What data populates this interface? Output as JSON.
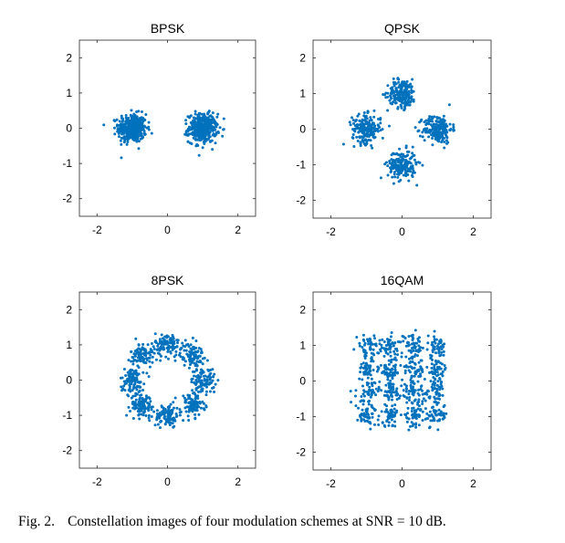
{
  "caption": {
    "label": "Fig. 2.",
    "text": "Constellation images of four modulation schemes at SNR = 10 dB."
  },
  "colors": {
    "points": "#0072BD",
    "axes": "#262626"
  },
  "chart_data": [
    {
      "type": "scatter",
      "title": "BPSK",
      "xlim": [
        -2.5,
        2.5
      ],
      "ylim": [
        -2.5,
        2.5
      ],
      "xticks": [
        -2,
        0,
        2
      ],
      "yticks": [
        -2,
        -1,
        0,
        1,
        2
      ],
      "grid": false,
      "legend": "none",
      "constellation": [
        [
          -1,
          0
        ],
        [
          1,
          0
        ]
      ],
      "noise_std": 0.2,
      "points_per_symbol": 400
    },
    {
      "type": "scatter",
      "title": "QPSK",
      "xlim": [
        -2.5,
        2.5
      ],
      "ylim": [
        -2.5,
        2.5
      ],
      "xticks": [
        -2,
        0,
        2
      ],
      "yticks": [
        -2,
        -1,
        0,
        1,
        2
      ],
      "grid": false,
      "legend": "none",
      "constellation": [
        [
          1,
          0
        ],
        [
          0,
          1
        ],
        [
          -1,
          0
        ],
        [
          0,
          -1
        ]
      ],
      "noise_std": 0.2,
      "points_per_symbol": 200
    },
    {
      "type": "scatter",
      "title": "8PSK",
      "xlim": [
        -2.5,
        2.5
      ],
      "ylim": [
        -2.5,
        2.5
      ],
      "xticks": [
        -2,
        0,
        2
      ],
      "yticks": [
        -2,
        -1,
        0,
        1,
        2
      ],
      "grid": false,
      "legend": "none",
      "constellation": [
        [
          1,
          0
        ],
        [
          0.707,
          0.707
        ],
        [
          0,
          1
        ],
        [
          -0.707,
          0.707
        ],
        [
          -1,
          0
        ],
        [
          -0.707,
          -0.707
        ],
        [
          0,
          -1
        ],
        [
          0.707,
          -0.707
        ]
      ],
      "noise_std": 0.17,
      "points_per_symbol": 100
    },
    {
      "type": "scatter",
      "title": "16QAM",
      "xlim": [
        -2.5,
        2.5
      ],
      "ylim": [
        -2.5,
        2.5
      ],
      "xticks": [
        -2,
        0,
        2
      ],
      "yticks": [
        -2,
        -1,
        0,
        1,
        2
      ],
      "grid": false,
      "legend": "none",
      "constellation": [
        [
          -0.95,
          -0.95
        ],
        [
          -0.95,
          -0.32
        ],
        [
          -0.95,
          0.32
        ],
        [
          -0.95,
          0.95
        ],
        [
          -0.32,
          -0.95
        ],
        [
          -0.32,
          -0.32
        ],
        [
          -0.32,
          0.32
        ],
        [
          -0.32,
          0.95
        ],
        [
          0.32,
          -0.95
        ],
        [
          0.32,
          -0.32
        ],
        [
          0.32,
          0.32
        ],
        [
          0.32,
          0.95
        ],
        [
          0.95,
          -0.95
        ],
        [
          0.95,
          -0.32
        ],
        [
          0.95,
          0.32
        ],
        [
          0.95,
          0.95
        ]
      ],
      "noise_std": 0.16,
      "points_per_symbol": 50
    }
  ]
}
